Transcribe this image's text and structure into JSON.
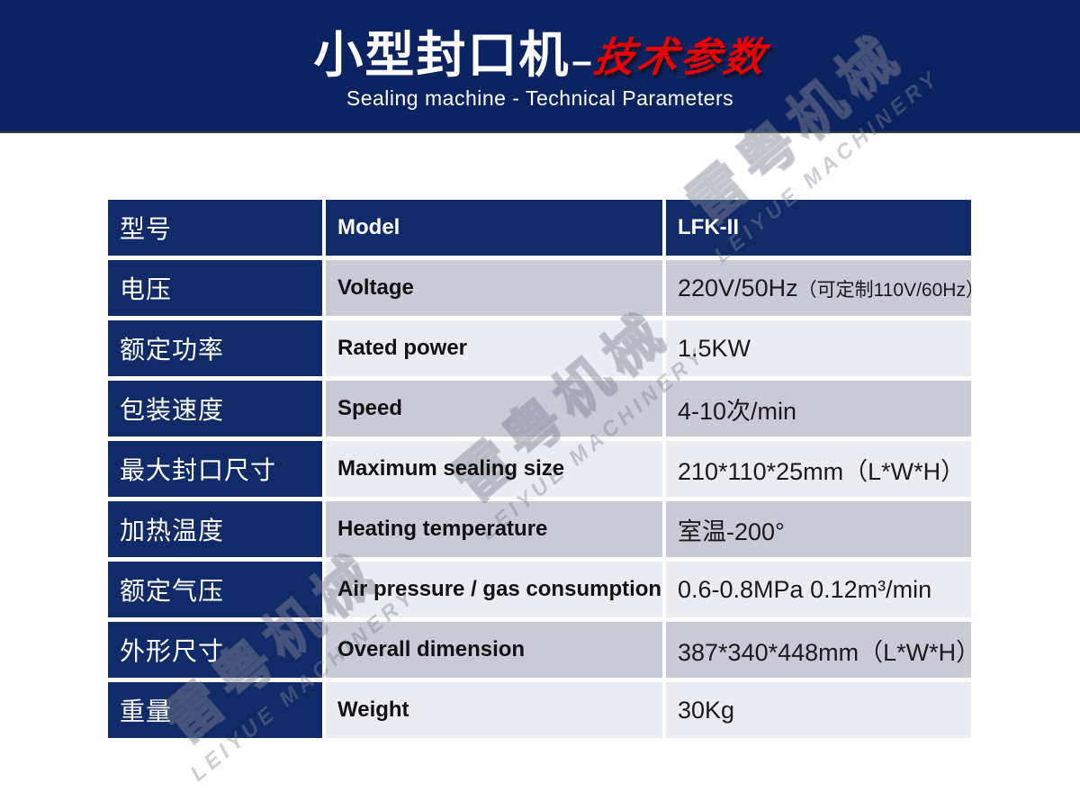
{
  "header": {
    "title_cn": "小型封口机",
    "title_dash": "–",
    "title_red": "技术参数",
    "subtitle": "Sealing machine - Technical Parameters",
    "bg_color": "#0c2361",
    "accent_color": "#e80000"
  },
  "watermark": {
    "cn": "雷粤机械",
    "en": "LEIYUE MACHINERY"
  },
  "table": {
    "colors": {
      "navy": "#112a68",
      "row_dark": "#c9cad6",
      "row_light": "#ebecf1"
    },
    "header_row": {
      "cn": "型号",
      "en": "Model",
      "value": "LFK-II"
    },
    "rows": [
      {
        "cn": "电压",
        "en": "Voltage",
        "value": "220V/50Hz",
        "note": "（可定制110V/60Hz）"
      },
      {
        "cn": "额定功率",
        "en": "Rated power",
        "value": "1.5KW",
        "note": ""
      },
      {
        "cn": "包装速度",
        "en": "Speed",
        "value": "4-10次/min",
        "note": ""
      },
      {
        "cn": "最大封口尺寸",
        "en": "Maximum sealing size",
        "value": "210*110*25mm（L*W*H）",
        "note": ""
      },
      {
        "cn": "加热温度",
        "en": "Heating temperature",
        "value": "室温-200°",
        "note": ""
      },
      {
        "cn": "额定气压",
        "en": "Air pressure / gas consumption",
        "value": "0.6-0.8MPa  0.12m³/min",
        "note": ""
      },
      {
        "cn": "外形尺寸",
        "en": "Overall dimension",
        "value": "387*340*448mm（L*W*H）",
        "note": ""
      },
      {
        "cn": "重量",
        "en": "Weight",
        "value": "30Kg",
        "note": ""
      }
    ]
  }
}
